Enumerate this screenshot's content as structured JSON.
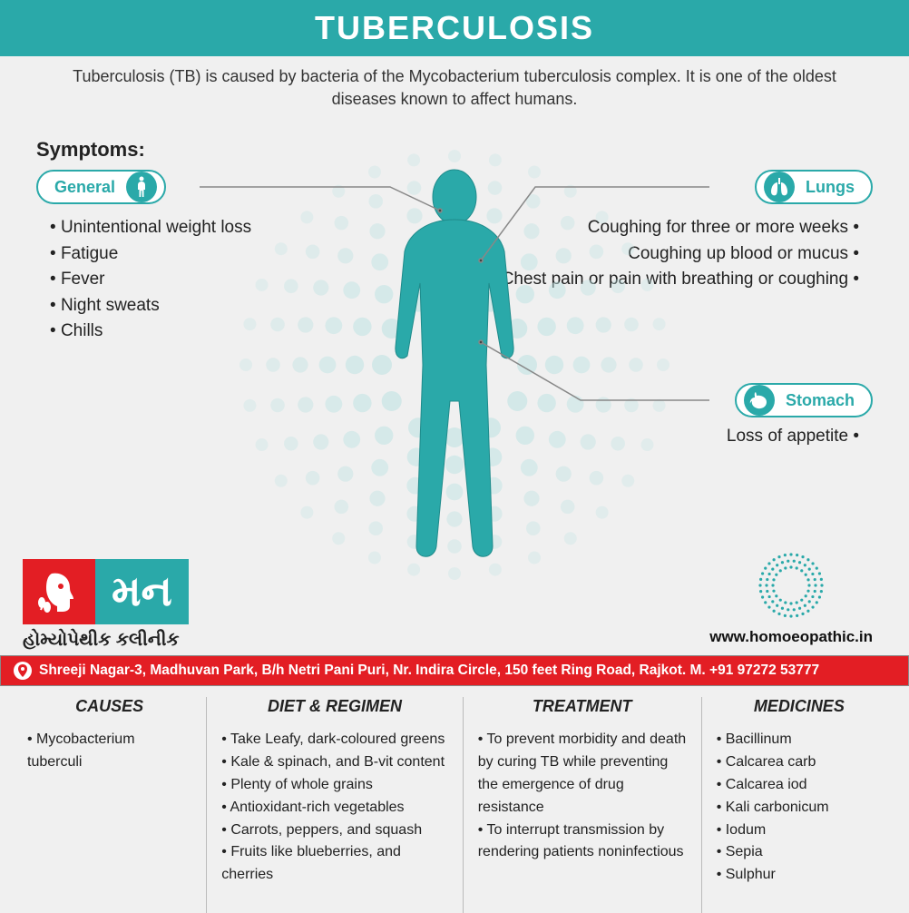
{
  "colors": {
    "teal": "#2aa9a9",
    "red": "#e31e24",
    "bg": "#f0f0f0",
    "text": "#222222",
    "divider": "#bbbbbb",
    "connector": "#888888"
  },
  "header": {
    "title": "TUBERCULOSIS",
    "subtitle": "Tuberculosis (TB) is caused by bacteria of the Mycobacterium tuberculosis complex. It is one of the oldest diseases known to affect humans."
  },
  "symptoms": {
    "heading": "Symptoms:",
    "general": {
      "label": "General",
      "items": [
        "Unintentional weight loss",
        "Fatigue",
        "Fever",
        "Night sweats",
        "Chills"
      ]
    },
    "lungs": {
      "label": "Lungs",
      "items": [
        "Coughing for three or more weeks",
        "Coughing up blood or mucus",
        "Chest pain or pain with breathing or coughing"
      ]
    },
    "stomach": {
      "label": "Stomach",
      "items": [
        "Loss of appetite"
      ]
    }
  },
  "logo": {
    "text_guj": "મન",
    "sub_guj": "હોમ્યોપેથીક કલીનીક"
  },
  "website": "www.homoeopathic.in",
  "address": "Shreeji Nagar-3, Madhuvan Park, B/h Netri Pani Puri, Nr. Indira Circle, 150 feet Ring Road, Rajkot. M. +91 97272 53777",
  "columns": {
    "causes": {
      "title": "CAUSES",
      "items": [
        "Mycobacterium  tuberculi"
      ]
    },
    "diet": {
      "title": "DIET & REGIMEN",
      "items": [
        "Take Leafy, dark-coloured greens",
        "Kale & spinach, and B-vit content",
        "Plenty of whole grains",
        "Antioxidant-rich vegetables",
        "Carrots, peppers, and squash",
        "Fruits like blueberries, and cherries"
      ]
    },
    "treatment": {
      "title": "TREATMENT",
      "items": [
        "To prevent morbidity and death by curing TB while preventing the emergence of drug resistance",
        "To interrupt transmission by rendering patients noninfectious"
      ]
    },
    "medicines": {
      "title": "MEDICINES",
      "items": [
        "Bacillinum",
        "Calcarea carb",
        "Calcarea iod",
        "Kali carbonicum",
        "Iodum",
        "Sepia",
        "Sulphur"
      ]
    }
  }
}
